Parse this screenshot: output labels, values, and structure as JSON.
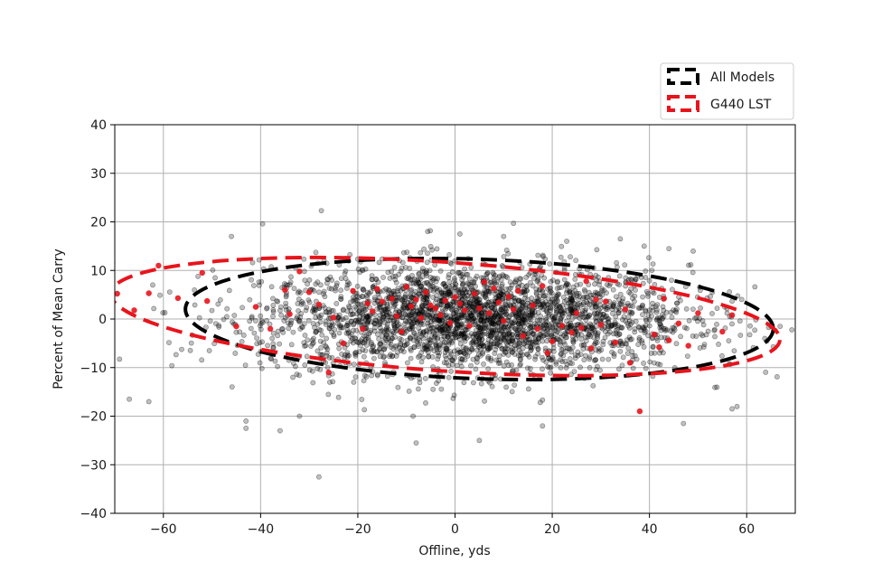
{
  "chart_data": {
    "type": "scatter",
    "title": "",
    "xlabel": "Offline, yds",
    "ylabel": "Percent of Mean Carry",
    "xlim": [
      -70,
      70
    ],
    "ylim": [
      -40,
      40
    ],
    "xticks": [
      -60,
      -40,
      -20,
      0,
      20,
      40,
      60
    ],
    "yticks": [
      -40,
      -30,
      -20,
      -10,
      0,
      10,
      20,
      30,
      40
    ],
    "xtick_labels": [
      "−60",
      "−40",
      "−20",
      "0",
      "20",
      "40",
      "60"
    ],
    "ytick_labels": [
      "−40",
      "−30",
      "−20",
      "−10",
      "0",
      "10",
      "20",
      "30",
      "40"
    ],
    "grid": true,
    "legend_position": "top-right",
    "legend": [
      {
        "label": "All Models",
        "color": "#000000"
      },
      {
        "label": "G440 LST",
        "color": "#e8141c"
      }
    ],
    "series": [
      {
        "name": "All Models",
        "color": "#000000",
        "marker_alpha": 0.25,
        "point_count": 3000,
        "distribution": {
          "x_mean": 4,
          "x_sd": 22,
          "y_mean": 0,
          "y_sd": 5.5
        },
        "outliers": [
          [
            -27.5,
            22.3
          ],
          [
            -28,
            -32.5
          ],
          [
            -43,
            -21
          ],
          [
            -43,
            -22.5
          ],
          [
            -32,
            -20
          ],
          [
            -8,
            -25.5
          ],
          [
            5,
            -25
          ],
          [
            -36,
            -23
          ],
          [
            -46,
            17
          ],
          [
            1,
            17.5
          ],
          [
            10,
            17
          ],
          [
            34,
            16.5
          ],
          [
            -63,
            -17
          ],
          [
            -67,
            -16.5
          ],
          [
            58,
            -18
          ],
          [
            47,
            -21.5
          ],
          [
            57,
            -18.5
          ],
          [
            44,
            14.5
          ],
          [
            49,
            14
          ],
          [
            18,
            -22
          ]
        ]
      },
      {
        "name": "G440 LST",
        "color": "#e8141c",
        "marker_alpha": 0.9,
        "points": [
          [
            -69.5,
            5.2
          ],
          [
            -66,
            1.8
          ],
          [
            -63,
            5.3
          ],
          [
            -61,
            11
          ],
          [
            -57,
            4.3
          ],
          [
            -52,
            9.5
          ],
          [
            -51,
            3.7
          ],
          [
            -45,
            -1.5
          ],
          [
            -41,
            2.5
          ],
          [
            -38,
            -2
          ],
          [
            -35,
            6
          ],
          [
            -34,
            1
          ],
          [
            -32,
            9.8
          ],
          [
            -30,
            5.5
          ],
          [
            -28,
            3
          ],
          [
            -26,
            -11
          ],
          [
            -25,
            0.3
          ],
          [
            -23,
            -5
          ],
          [
            -21,
            5.8
          ],
          [
            -19,
            -2
          ],
          [
            -18,
            3.2
          ],
          [
            -17,
            1.6
          ],
          [
            -16,
            6.2
          ],
          [
            -15,
            3.6
          ],
          [
            -13,
            4.2
          ],
          [
            -12,
            0.6
          ],
          [
            -11,
            -2.6
          ],
          [
            -10,
            6.6
          ],
          [
            -9,
            2.6
          ],
          [
            -8,
            4
          ],
          [
            -7,
            0.2
          ],
          [
            -6,
            5.5
          ],
          [
            -5,
            2.8
          ],
          [
            -4,
            2.2
          ],
          [
            -3,
            0.8
          ],
          [
            -2,
            3.8
          ],
          [
            -1,
            -0.8
          ],
          [
            0,
            4.5
          ],
          [
            1,
            3.2
          ],
          [
            2,
            1.8
          ],
          [
            3,
            -1.4
          ],
          [
            4,
            5.2
          ],
          [
            5,
            2.2
          ],
          [
            6,
            7.6
          ],
          [
            7,
            1.2
          ],
          [
            8,
            6.3
          ],
          [
            9,
            3.4
          ],
          [
            10,
            -0.4
          ],
          [
            11,
            4.6
          ],
          [
            12,
            2
          ],
          [
            13,
            5.8
          ],
          [
            14,
            -3.5
          ],
          [
            16,
            2.8
          ],
          [
            17,
            -2
          ],
          [
            18,
            6.8
          ],
          [
            19,
            -7
          ],
          [
            20,
            -4.6
          ],
          [
            22,
            -1.4
          ],
          [
            24,
            -2.8
          ],
          [
            25,
            1.2
          ],
          [
            26,
            -1.8
          ],
          [
            27,
            7.8
          ],
          [
            28,
            -6
          ],
          [
            29,
            4
          ],
          [
            30,
            -1.2
          ],
          [
            31,
            3.6
          ],
          [
            33,
            -4.8
          ],
          [
            35,
            2
          ],
          [
            36,
            -9
          ],
          [
            38,
            -19
          ],
          [
            41,
            -3.2
          ],
          [
            42,
            -5.8
          ],
          [
            43,
            4.2
          ],
          [
            44,
            -4.4
          ],
          [
            46,
            -0.9
          ],
          [
            48,
            -5.5
          ],
          [
            50,
            1.2
          ],
          [
            55,
            -2.6
          ],
          [
            57,
            0.8
          ]
        ]
      }
    ],
    "ellipses": [
      {
        "name": "All Models",
        "color": "#000000",
        "cx": 5,
        "cy": 0,
        "rx": 60.5,
        "ry": 12.3,
        "angle_deg": -2
      },
      {
        "name": "G440 LST",
        "color": "#e8141c",
        "cx": -2,
        "cy": 0.5,
        "rx": 69,
        "ry": 11.2,
        "angle_deg": -4
      }
    ]
  }
}
